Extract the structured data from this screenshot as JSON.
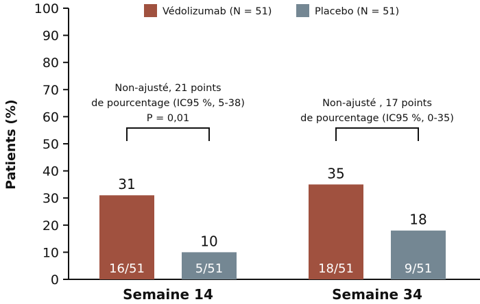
{
  "chart_data": {
    "type": "bar",
    "categories": [
      "Semaine 14",
      "Semaine 34"
    ],
    "series": [
      {
        "name": "Védolizumab (N = 51)",
        "color": "#a0513f",
        "values": [
          31,
          35
        ],
        "fractions": [
          "16/51",
          "18/51"
        ]
      },
      {
        "name": "Placebo (N = 51)",
        "color": "#748793",
        "values": [
          10,
          18
        ],
        "fractions": [
          "5/51",
          "9/51"
        ]
      }
    ],
    "ylabel": "Patients (%)",
    "xlabel": "",
    "ylim": [
      0,
      100
    ],
    "yticks": [
      "0",
      "10",
      "20",
      "30",
      "40",
      "50",
      "60",
      "70",
      "80",
      "90",
      "100"
    ],
    "grid": false,
    "legend_position": "top",
    "annotations": [
      {
        "lines": [
          "Non-ajusté, 21 points",
          "de pourcentage (IC95 %, 5-38)",
          "P = 0,01"
        ]
      },
      {
        "lines": [
          "Non-ajusté , 17 points",
          "de pourcentage (IC95 %, 0-35)"
        ]
      }
    ]
  }
}
